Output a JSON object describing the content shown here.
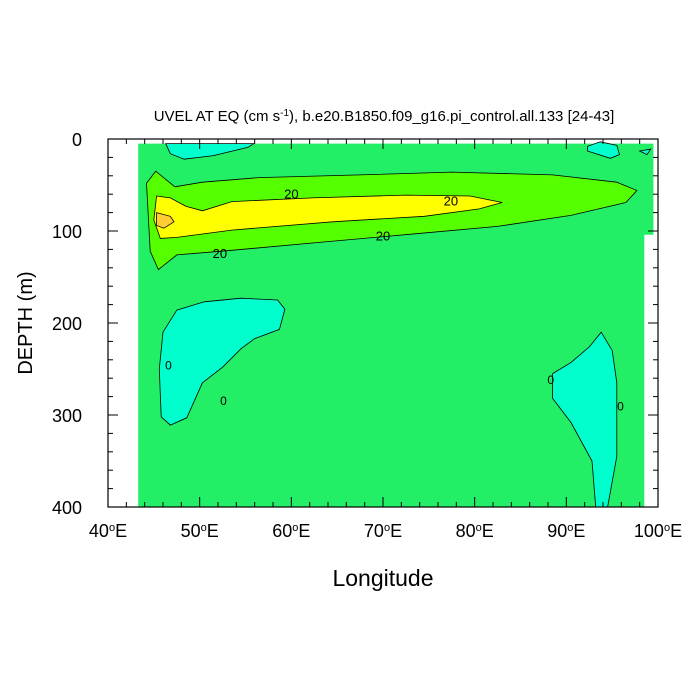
{
  "chart_data": {
    "type": "contour",
    "title": {
      "prefix": "UVEL AT EQ (cm s",
      "superscript": "-1",
      "suffix": "), b.e20.B1850.f09_g16.pi_control.all.133 [24-43]"
    },
    "xlabel": "Longitude",
    "ylabel": "DEPTH (m)",
    "xlim": [
      40,
      100
    ],
    "ylim": [
      0,
      400
    ],
    "y_inverted": true,
    "x_ticks": [
      {
        "value": 40,
        "label": "40",
        "suffix": "E"
      },
      {
        "value": 50,
        "label": "50",
        "suffix": "E"
      },
      {
        "value": 60,
        "label": "60",
        "suffix": "E"
      },
      {
        "value": 70,
        "label": "70",
        "suffix": "E"
      },
      {
        "value": 80,
        "label": "80",
        "suffix": "E"
      },
      {
        "value": 90,
        "label": "90",
        "suffix": "E"
      },
      {
        "value": 100,
        "label": "100",
        "suffix": "E"
      }
    ],
    "y_ticks": [
      {
        "value": 0,
        "label": "0"
      },
      {
        "value": 100,
        "label": "100"
      },
      {
        "value": 200,
        "label": "200"
      },
      {
        "value": 300,
        "label": "300"
      },
      {
        "value": 400,
        "label": "400"
      }
    ],
    "colors": {
      "background_field": "#22ee66",
      "cyan": "#00ffcc",
      "light_green": "#55ff00",
      "yellow": "#ffff00",
      "orange": "#ffcc33"
    },
    "regions": [
      {
        "id": "bg",
        "fill": "background_field",
        "stroke": false,
        "points": [
          [
            43.3,
            5
          ],
          [
            99.5,
            5
          ],
          [
            99.5,
            104
          ],
          [
            98.5,
            104
          ],
          [
            98.5,
            400
          ],
          [
            43.3,
            400
          ]
        ]
      },
      {
        "id": "cyan-top",
        "fill": "cyan",
        "points": [
          [
            46.3,
            5
          ],
          [
            55.9,
            5
          ],
          [
            55.3,
            9
          ],
          [
            51.5,
            18
          ],
          [
            48.3,
            22
          ],
          [
            46.8,
            16
          ],
          [
            46.3,
            5
          ]
        ]
      },
      {
        "id": "cyan-top-right",
        "fill": "cyan",
        "points": [
          [
            92.3,
            8
          ],
          [
            93.7,
            3
          ],
          [
            95.5,
            7
          ],
          [
            95.8,
            17
          ],
          [
            94.8,
            21
          ],
          [
            92.3,
            13
          ]
        ]
      },
      {
        "id": "cyan-small-right",
        "fill": "cyan",
        "points": [
          [
            98.0,
            13
          ],
          [
            99.2,
            11
          ],
          [
            98.8,
            17
          ]
        ]
      },
      {
        "id": "cyan-left",
        "fill": "cyan",
        "points": [
          [
            47.5,
            186
          ],
          [
            50.5,
            177
          ],
          [
            54.5,
            173
          ],
          [
            58.5,
            175
          ],
          [
            59.3,
            185
          ],
          [
            58.7,
            207
          ],
          [
            56.0,
            217
          ],
          [
            54.5,
            228
          ],
          [
            52.5,
            248
          ],
          [
            50.3,
            265
          ],
          [
            48.6,
            303
          ],
          [
            46.8,
            311
          ],
          [
            45.8,
            302
          ],
          [
            45.6,
            250
          ],
          [
            46.0,
            210
          ]
        ]
      },
      {
        "id": "cyan-right",
        "fill": "cyan",
        "points": [
          [
            88.5,
            255
          ],
          [
            90.5,
            243
          ],
          [
            92.5,
            226
          ],
          [
            93.8,
            210
          ],
          [
            95.0,
            230
          ],
          [
            95.5,
            265
          ],
          [
            95.5,
            345
          ],
          [
            94.5,
            400
          ],
          [
            93.2,
            400
          ],
          [
            92.8,
            350
          ],
          [
            90.5,
            308
          ],
          [
            88.5,
            282
          ]
        ]
      },
      {
        "id": "green-band",
        "fill": "light_green",
        "points": [
          [
            44.2,
            48
          ],
          [
            45.2,
            35
          ],
          [
            47.3,
            52
          ],
          [
            50.3,
            47
          ],
          [
            56.5,
            42
          ],
          [
            67.5,
            39
          ],
          [
            77.5,
            36
          ],
          [
            88.5,
            39
          ],
          [
            95.5,
            47
          ],
          [
            97.7,
            56
          ],
          [
            96.5,
            69
          ],
          [
            90.5,
            83
          ],
          [
            82.5,
            95
          ],
          [
            73.5,
            103
          ],
          [
            63.5,
            112
          ],
          [
            53.5,
            121
          ],
          [
            47.5,
            126
          ],
          [
            45.5,
            142
          ],
          [
            44.6,
            122
          ]
        ]
      },
      {
        "id": "yellow-core",
        "fill": "yellow",
        "points": [
          [
            45.3,
            62
          ],
          [
            46.8,
            64
          ],
          [
            48.5,
            73
          ],
          [
            50.3,
            78
          ],
          [
            53.5,
            68
          ],
          [
            62.3,
            64
          ],
          [
            72.5,
            61
          ],
          [
            79.5,
            62
          ],
          [
            83.0,
            69
          ],
          [
            80.5,
            76
          ],
          [
            74.5,
            84
          ],
          [
            64.5,
            90
          ],
          [
            53.5,
            99
          ],
          [
            47.5,
            107
          ],
          [
            45.7,
            108
          ],
          [
            45.0,
            88
          ]
        ]
      },
      {
        "id": "orange-core",
        "fill": "orange",
        "points": [
          [
            45.3,
            80
          ],
          [
            46.8,
            84
          ],
          [
            47.2,
            90
          ],
          [
            46.1,
            97
          ],
          [
            45.3,
            94
          ]
        ]
      }
    ],
    "contour_labels": [
      {
        "text": "20",
        "x": 60.0,
        "y": 59
      },
      {
        "text": "20",
        "x": 77.4,
        "y": 67
      },
      {
        "text": "20",
        "x": 70.0,
        "y": 105
      },
      {
        "text": "20",
        "x": 52.2,
        "y": 124
      }
    ],
    "zero_markers": [
      {
        "text": "0",
        "x": 46.6,
        "y": 246
      },
      {
        "text": "0",
        "x": 52.6,
        "y": 285
      },
      {
        "text": "0",
        "x": 88.3,
        "y": 262
      },
      {
        "text": "0",
        "x": 95.9,
        "y": 291
      }
    ]
  }
}
